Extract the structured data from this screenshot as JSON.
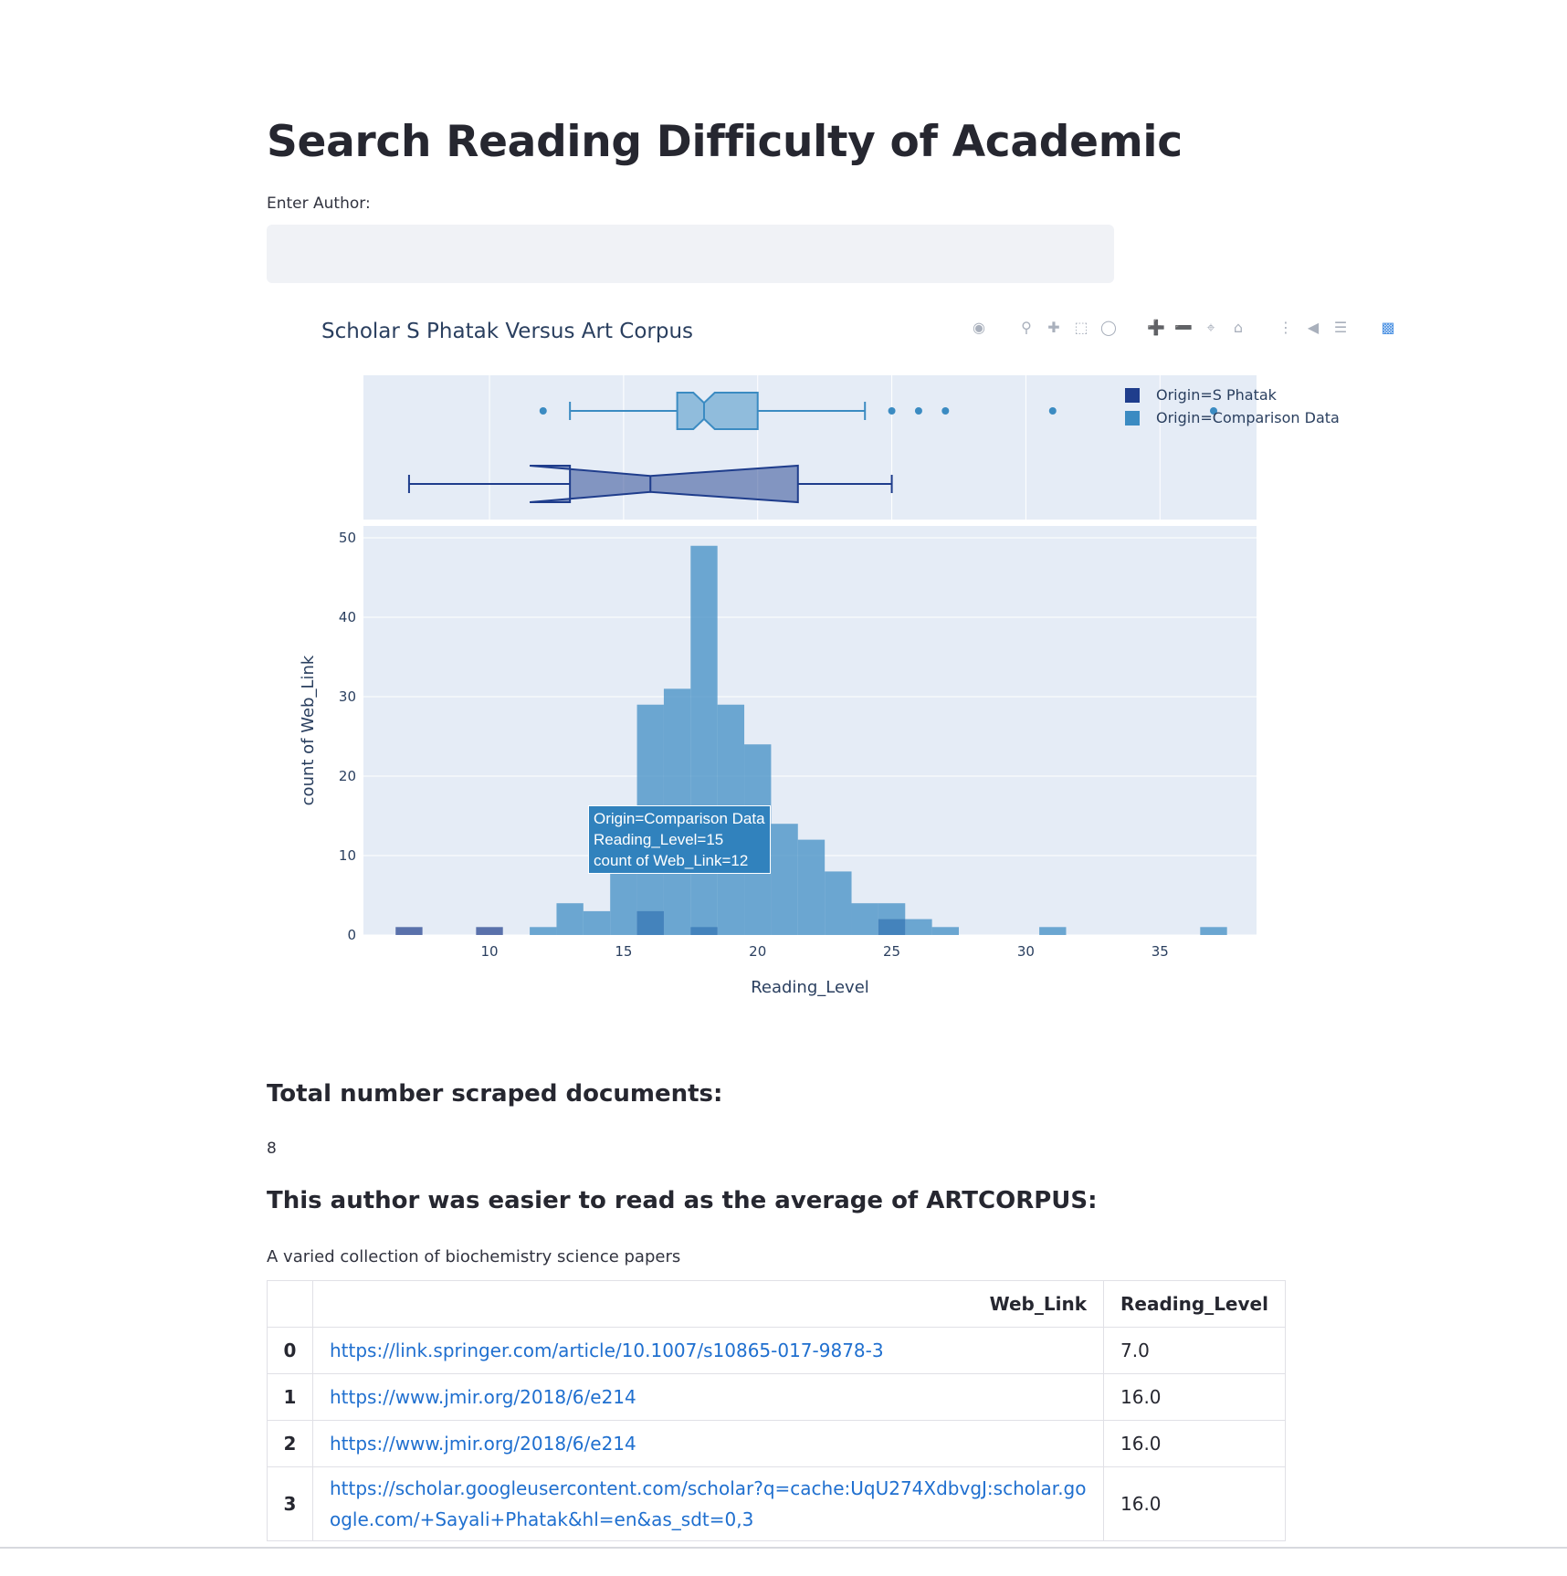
{
  "page": {
    "title": "Search Reading Difficulty of Academic",
    "author_input_label": "Enter Author:",
    "author_input_value": ""
  },
  "plot": {
    "title": "Scholar S Phatak Versus Art Corpus",
    "modebar_icons": [
      "camera-icon",
      "zoom-icon",
      "pan-icon",
      "box-select-icon",
      "lasso-icon",
      "zoom-in-icon",
      "zoom-out-icon",
      "autoscale-icon",
      "reset-axes-icon",
      "spike-lines-icon",
      "hover-closest-icon",
      "hover-compare-icon",
      "plotly-logo-icon"
    ],
    "legend": [
      {
        "label": "Origin=S Phatak",
        "color": "#1f3d8c"
      },
      {
        "label": "Origin=Comparison Data",
        "color": "#3b8bc2"
      }
    ],
    "hover": {
      "line1": "Origin=Comparison Data",
      "line2": "Reading_Level=15",
      "line3": "count of Web_Link=12"
    }
  },
  "chart_data": {
    "type": "histogram",
    "title": "Scholar S Phatak Versus Art Corpus",
    "xlabel": "Reading_Level",
    "ylabel": "count of Web_Link",
    "xlim": [
      5.3,
      38.6
    ],
    "ylim": [
      0,
      51.5
    ],
    "x_ticks": [
      10,
      15,
      20,
      25,
      30,
      35
    ],
    "y_ticks": [
      0,
      10,
      20,
      30,
      40,
      50
    ],
    "bin_width": 1,
    "series": [
      {
        "name": "Origin=Comparison Data",
        "color": "#3b8bc2",
        "bins": [
          {
            "x0": 11.5,
            "count": 1
          },
          {
            "x0": 12.5,
            "count": 4
          },
          {
            "x0": 13.5,
            "count": 3
          },
          {
            "x0": 14.5,
            "count": 12
          },
          {
            "x0": 15.5,
            "count": 29
          },
          {
            "x0": 16.5,
            "count": 31
          },
          {
            "x0": 17.5,
            "count": 49
          },
          {
            "x0": 18.5,
            "count": 29
          },
          {
            "x0": 19.5,
            "count": 24
          },
          {
            "x0": 20.5,
            "count": 14
          },
          {
            "x0": 21.5,
            "count": 12
          },
          {
            "x0": 22.5,
            "count": 8
          },
          {
            "x0": 23.5,
            "count": 4
          },
          {
            "x0": 24.5,
            "count": 4
          },
          {
            "x0": 25.5,
            "count": 2
          },
          {
            "x0": 26.5,
            "count": 1
          },
          {
            "x0": 30.5,
            "count": 1
          },
          {
            "x0": 36.5,
            "count": 1
          }
        ],
        "box": {
          "min": 13,
          "q1": 17,
          "median": 18,
          "q3": 20,
          "max": 24,
          "notch_low": 17.6,
          "notch_high": 18.4,
          "outliers": [
            12,
            25,
            26,
            27,
            31,
            37
          ]
        }
      },
      {
        "name": "Origin=S Phatak",
        "color": "#1f3d8c",
        "bins": [
          {
            "x0": 6.5,
            "count": 1
          },
          {
            "x0": 9.5,
            "count": 1
          },
          {
            "x0": 15.5,
            "count": 3
          },
          {
            "x0": 17.5,
            "count": 1
          },
          {
            "x0": 24.5,
            "count": 2
          }
        ],
        "box": {
          "min": 7,
          "q1": 13,
          "median": 16,
          "q3": 21.5,
          "max": 25,
          "notch_low": 11.5,
          "notch_high": 21.5,
          "outliers": []
        }
      }
    ],
    "legend_position": "top-right",
    "grid": true
  },
  "summary": {
    "total_heading": "Total number scraped documents:",
    "total_value": "8",
    "comparison_heading": "This author was easier to read as the average of ARTCORPUS:",
    "corpus_description": "A varied collection of biochemistry science papers"
  },
  "table": {
    "columns": [
      "",
      "Web_Link",
      "Reading_Level"
    ],
    "rows": [
      {
        "index": "0",
        "link": "https://link.springer.com/article/10.1007/s10865-017-9878-3",
        "level": "7.0"
      },
      {
        "index": "1",
        "link": "https://www.jmir.org/2018/6/e214",
        "level": "16.0"
      },
      {
        "index": "2",
        "link": "https://www.jmir.org/2018/6/e214",
        "level": "16.0"
      },
      {
        "index": "3",
        "link": "https://scholar.googleusercontent.com/scholar?q=cache:UqU274XdbvgJ:scholar.google.com/+Sayali+Phatak&hl=en&as_sdt=0,3",
        "level": "16.0"
      }
    ]
  }
}
